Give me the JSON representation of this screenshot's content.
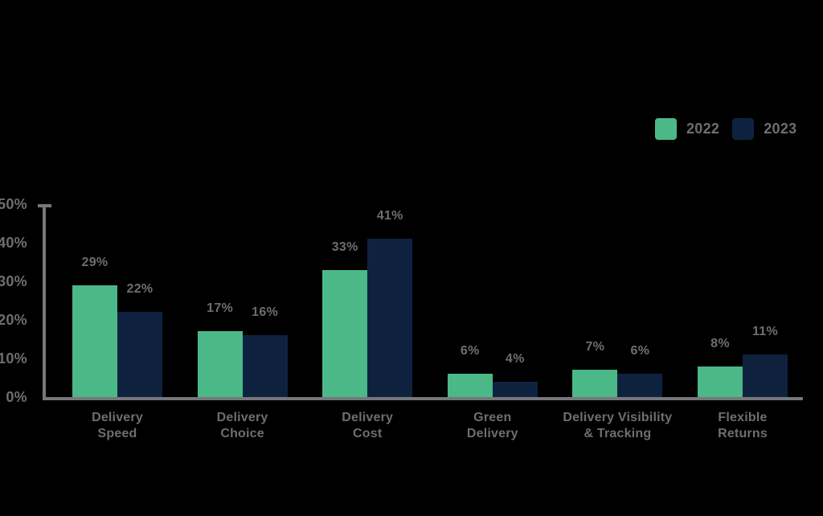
{
  "chart_data": {
    "type": "bar",
    "title": "",
    "categories": [
      {
        "label": "Delivery Speed",
        "lines": [
          "Delivery",
          "Speed"
        ]
      },
      {
        "label": "Delivery Choice",
        "lines": [
          "Delivery",
          "Choice"
        ]
      },
      {
        "label": "Delivery Cost",
        "lines": [
          "Delivery",
          "Cost"
        ]
      },
      {
        "label": "Green Delivery",
        "lines": [
          "Green",
          "Delivery"
        ]
      },
      {
        "label": "Delivery Visibility & Tracking",
        "lines": [
          "Delivery Visibility",
          "& Tracking"
        ]
      },
      {
        "label": "Flexible Returns",
        "lines": [
          "Flexible",
          "Returns"
        ]
      }
    ],
    "series": [
      {
        "name": "2022",
        "color": "#4BB888",
        "values": [
          29,
          17,
          33,
          6,
          7,
          8
        ]
      },
      {
        "name": "2023",
        "color": "#0E2240",
        "values": [
          22,
          16,
          41,
          4,
          6,
          11
        ]
      }
    ],
    "value_suffix": "%",
    "data_labels": true,
    "y_ticks": [
      0,
      10,
      20,
      30,
      40,
      50
    ],
    "ylim": [
      0,
      50
    ],
    "grid": false,
    "legend_position": "top-right"
  },
  "colors": {
    "background": "#000000",
    "label_text": "#6D6E71",
    "axis_line": "#75777A"
  }
}
